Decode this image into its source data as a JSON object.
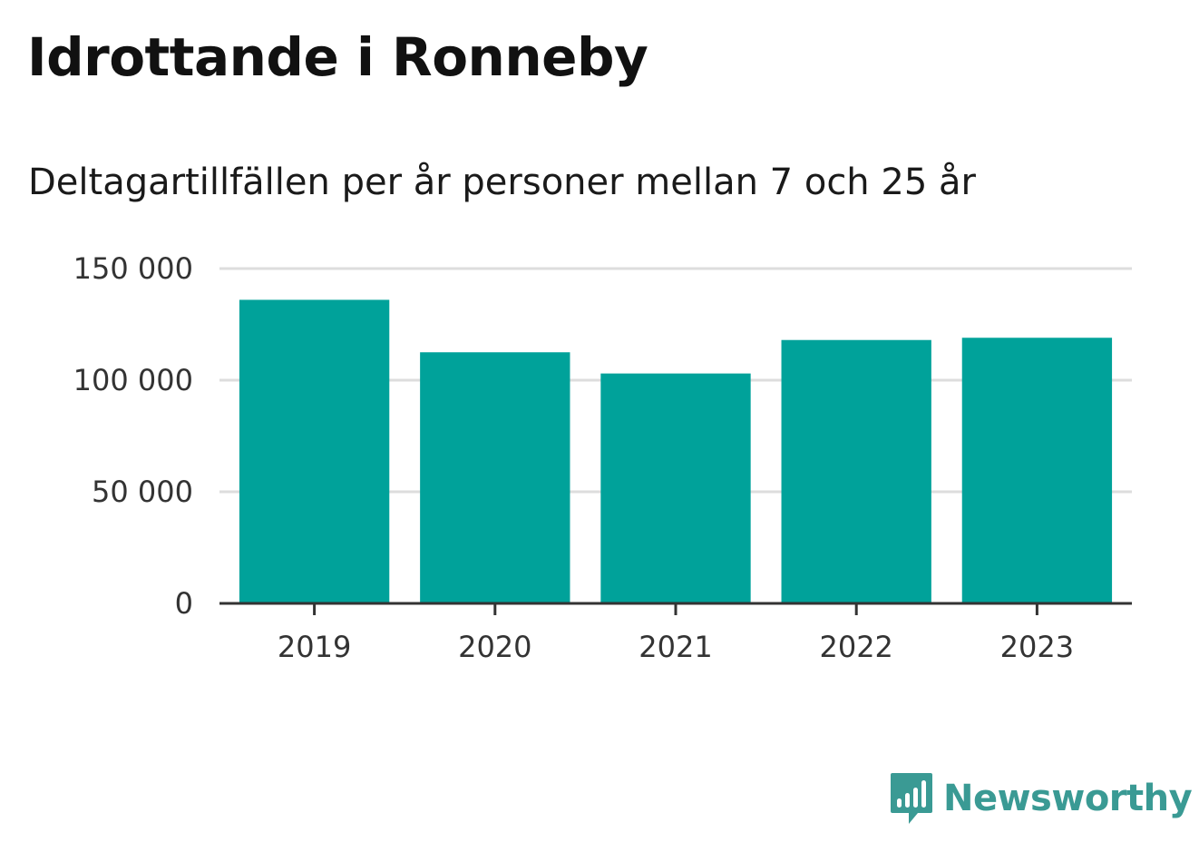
{
  "chart_data": {
    "type": "bar",
    "title": "Idrottande i Ronneby",
    "subtitle": "Deltagartillfällen per år personer mellan 7 och 25 år",
    "categories": [
      "2019",
      "2020",
      "2021",
      "2022",
      "2023"
    ],
    "values": [
      136000,
      112500,
      103000,
      118000,
      119000
    ],
    "ylim": [
      0,
      150000
    ],
    "yticks": [
      0,
      50000,
      100000,
      150000
    ],
    "ytick_labels": [
      "0",
      "50 000",
      "100 000",
      "150 000"
    ],
    "xlabel": "",
    "ylabel": "",
    "grid": true,
    "bar_color": "#00a29a"
  },
  "brand": {
    "name": "Newsworthy",
    "color": "#3a9a94"
  }
}
